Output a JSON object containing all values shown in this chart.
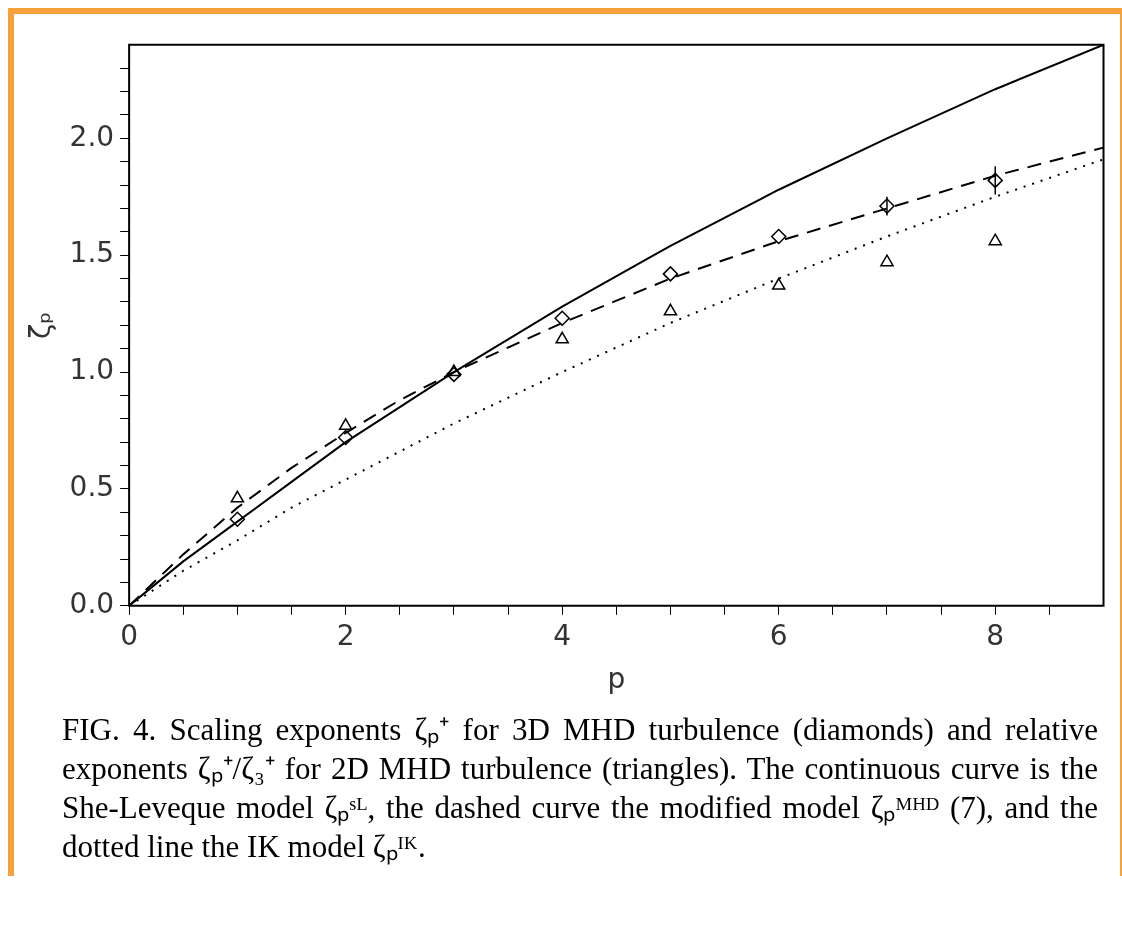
{
  "chart_data": {
    "type": "line",
    "xlabel": "p",
    "ylabel": "ζₚ",
    "xlim": [
      0,
      9
    ],
    "ylim": [
      0,
      2.4
    ],
    "xticks": [
      0,
      {
        "value": 0.5,
        "label": null
      },
      {
        "value": 1,
        "label": null
      },
      {
        "value": 1.5,
        "label": null
      },
      2,
      {
        "value": 2.5,
        "label": null
      },
      {
        "value": 3,
        "label": null
      },
      {
        "value": 3.5,
        "label": null
      },
      4,
      {
        "value": 4.5,
        "label": null
      },
      {
        "value": 5,
        "label": null
      },
      {
        "value": 5.5,
        "label": null
      },
      6,
      {
        "value": 6.5,
        "label": null
      },
      {
        "value": 7,
        "label": null
      },
      {
        "value": 7.5,
        "label": null
      },
      8,
      {
        "value": 8.5,
        "label": null
      }
    ],
    "yticks": [
      {
        "value": 0,
        "label": "0.0"
      },
      {
        "value": 0.1,
        "label": null
      },
      {
        "value": 0.2,
        "label": null
      },
      {
        "value": 0.3,
        "label": null
      },
      {
        "value": 0.4,
        "label": null
      },
      0.5,
      {
        "value": 0.6,
        "label": null
      },
      {
        "value": 0.7,
        "label": null
      },
      {
        "value": 0.8,
        "label": null
      },
      {
        "value": 0.9,
        "label": null
      },
      {
        "value": 1,
        "label": "1.0"
      },
      {
        "value": 1.1,
        "label": null
      },
      {
        "value": 1.2,
        "label": null
      },
      {
        "value": 1.3,
        "label": null
      },
      {
        "value": 1.4,
        "label": null
      },
      1.5,
      {
        "value": 1.6,
        "label": null
      },
      {
        "value": 1.7,
        "label": null
      },
      {
        "value": 1.8,
        "label": null
      },
      {
        "value": 1.9,
        "label": null
      },
      {
        "value": 2,
        "label": "2.0"
      },
      {
        "value": 2.1,
        "label": null
      },
      {
        "value": 2.2,
        "label": null
      },
      {
        "value": 2.3,
        "label": null
      }
    ],
    "grid": false,
    "legend": false,
    "series": [
      {
        "type": "line",
        "color": "#000000",
        "line_style": "solid",
        "marker": "none",
        "x": [
          0,
          0.5,
          1,
          1.5,
          2,
          2.5,
          3,
          3.5,
          4,
          5,
          6,
          7,
          8,
          9
        ],
        "values": [
          0,
          0.19,
          0.36,
          0.53,
          0.7,
          0.85,
          1.0,
          1.14,
          1.28,
          1.54,
          1.78,
          2.0,
          2.21,
          2.4
        ]
      },
      {
        "type": "line",
        "color": "#000000",
        "line_style": "dashed",
        "marker": "none",
        "x": [
          0,
          0.5,
          1,
          1.5,
          2,
          2.5,
          3,
          4,
          5,
          6,
          7,
          8,
          9
        ],
        "values": [
          0,
          0.22,
          0.42,
          0.59,
          0.74,
          0.88,
          1.0,
          1.21,
          1.4,
          1.56,
          1.7,
          1.84,
          1.96
        ]
      },
      {
        "type": "line",
        "color": "#000000",
        "line_style": "dotted",
        "marker": "none",
        "x": [
          0,
          0.5,
          1,
          1.5,
          2,
          2.5,
          3,
          4,
          5,
          6,
          7,
          8,
          9
        ],
        "values": [
          0,
          0.15,
          0.28,
          0.42,
          0.54,
          0.66,
          0.78,
          1.0,
          1.21,
          1.4,
          1.58,
          1.75,
          1.91
        ]
      },
      {
        "type": "scatter",
        "color": "#000000",
        "marker": "diamond",
        "x": [
          1,
          2,
          3,
          4,
          5,
          6,
          7,
          8
        ],
        "values": [
          0.37,
          0.72,
          0.99,
          1.23,
          1.42,
          1.58,
          1.71,
          1.82
        ],
        "errors": [
          null,
          null,
          null,
          null,
          null,
          null,
          0.04,
          0.06
        ]
      },
      {
        "type": "scatter",
        "color": "#000000",
        "marker": "triangle",
        "x": [
          1,
          2,
          3,
          4,
          5,
          6,
          7,
          8
        ],
        "values": [
          0.46,
          0.77,
          1.0,
          1.14,
          1.26,
          1.37,
          1.47,
          1.56
        ]
      }
    ],
    "annotations": [
      "FIG. 4.   Scaling exponents ζₚ⁺ for 3D MHD turbulence (diamonds) and relative exponents ζₚ⁺/ζ₃⁺ for 2D MHD turbulence (triangles). The continuous curve is the She-Leveque model ζₚˢᴸ, the dashed curve the modified model ζₚᴹᴴᴰ (7), and the dotted line the IK model ζₚᴵᴷ."
    ]
  }
}
